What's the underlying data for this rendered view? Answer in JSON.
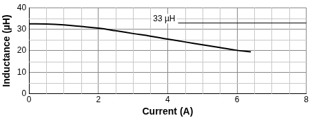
{
  "chart_data": {
    "type": "line",
    "x_label": "Current (A)",
    "y_label": "Inductance (µH)",
    "x": [
      0,
      0.5,
      1,
      1.5,
      2,
      2.5,
      3,
      3.5,
      4,
      4.5,
      5,
      5.5,
      6,
      6.4
    ],
    "values": [
      32.5,
      32.4,
      32,
      31.3,
      30.5,
      29.3,
      28,
      26.8,
      25.4,
      24.1,
      22.8,
      21.5,
      20.2,
      19.5
    ],
    "color": "#000000",
    "xlim": [
      0,
      8
    ],
    "xticks": [
      0,
      2,
      4,
      6,
      8
    ],
    "ylim": [
      0,
      40
    ],
    "yticks": [
      0,
      10,
      20,
      30,
      40
    ],
    "grid": true,
    "annotations": [
      {
        "text": "33 µH",
        "x": 3.9,
        "y": 33
      }
    ]
  }
}
